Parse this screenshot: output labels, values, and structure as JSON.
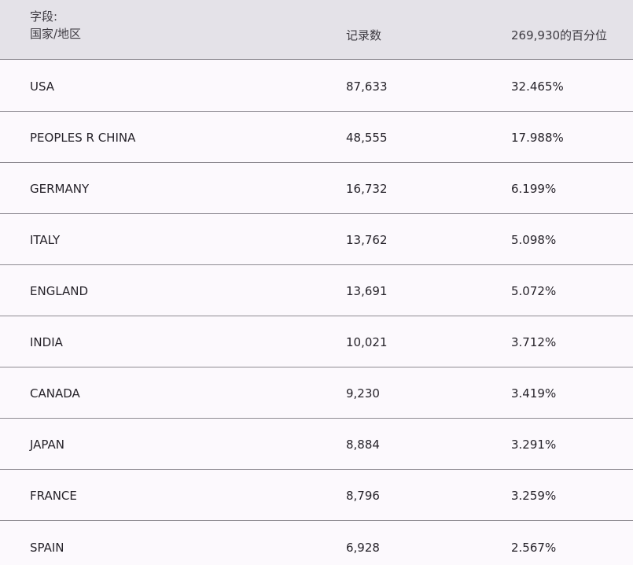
{
  "header": {
    "field_label": "字段:",
    "field_name": "国家/地区",
    "records_label": "记录数",
    "percent_label": "269,930的百分位"
  },
  "rows": [
    {
      "country": "USA",
      "records": "87,633",
      "percent": "32.465%"
    },
    {
      "country": "PEOPLES R CHINA",
      "records": "48,555",
      "percent": "17.988%"
    },
    {
      "country": "GERMANY",
      "records": "16,732",
      "percent": "6.199%"
    },
    {
      "country": "ITALY",
      "records": "13,762",
      "percent": "5.098%"
    },
    {
      "country": "ENGLAND",
      "records": "13,691",
      "percent": "5.072%"
    },
    {
      "country": "INDIA",
      "records": "10,021",
      "percent": "3.712%"
    },
    {
      "country": "CANADA",
      "records": "9,230",
      "percent": "3.419%"
    },
    {
      "country": "JAPAN",
      "records": "8,884",
      "percent": "3.291%"
    },
    {
      "country": "FRANCE",
      "records": "8,796",
      "percent": "3.259%"
    },
    {
      "country": "SPAIN",
      "records": "6,928",
      "percent": "2.567%"
    }
  ]
}
